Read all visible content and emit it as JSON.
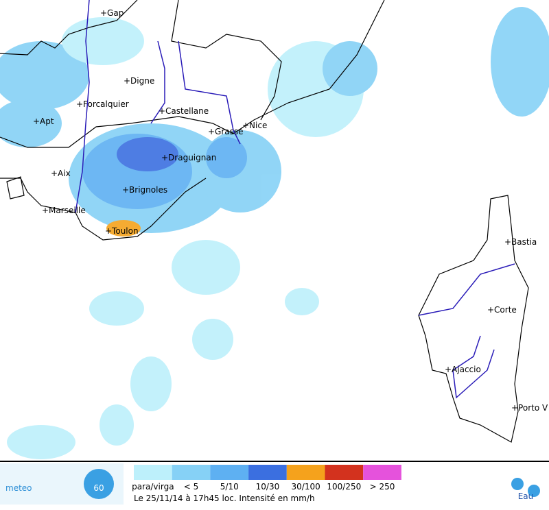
{
  "map": {
    "cities": [
      "+Gap",
      "+Digne",
      "+Forcalquier",
      "+Castellane",
      "+Apt",
      "+Grasse",
      "+Nice",
      "+Draguignan",
      "+Aix",
      "+Brignoles",
      "+Marseille",
      "+Toulon",
      "+Bastia",
      "+Corte",
      "+Ajaccio",
      "+Porto V"
    ]
  },
  "footer": {
    "logo": {
      "word": "meteo",
      "number": "60"
    },
    "legend": [
      {
        "label": "para/virga",
        "color": "#bdf0fb"
      },
      {
        "label": "< 5",
        "color": "#86d1f6"
      },
      {
        "label": "5/10",
        "color": "#5eb0f2"
      },
      {
        "label": "10/30",
        "color": "#3b6fe0"
      },
      {
        "label": "30/100",
        "color": "#f5a21c"
      },
      {
        "label": "100/250",
        "color": "#d3321e"
      },
      {
        "label": "> 250",
        "color": "#e552dc"
      }
    ],
    "caption": "Le 25/11/14 à 17h45 loc. Intensité en mm/h",
    "partner": "Eau"
  }
}
